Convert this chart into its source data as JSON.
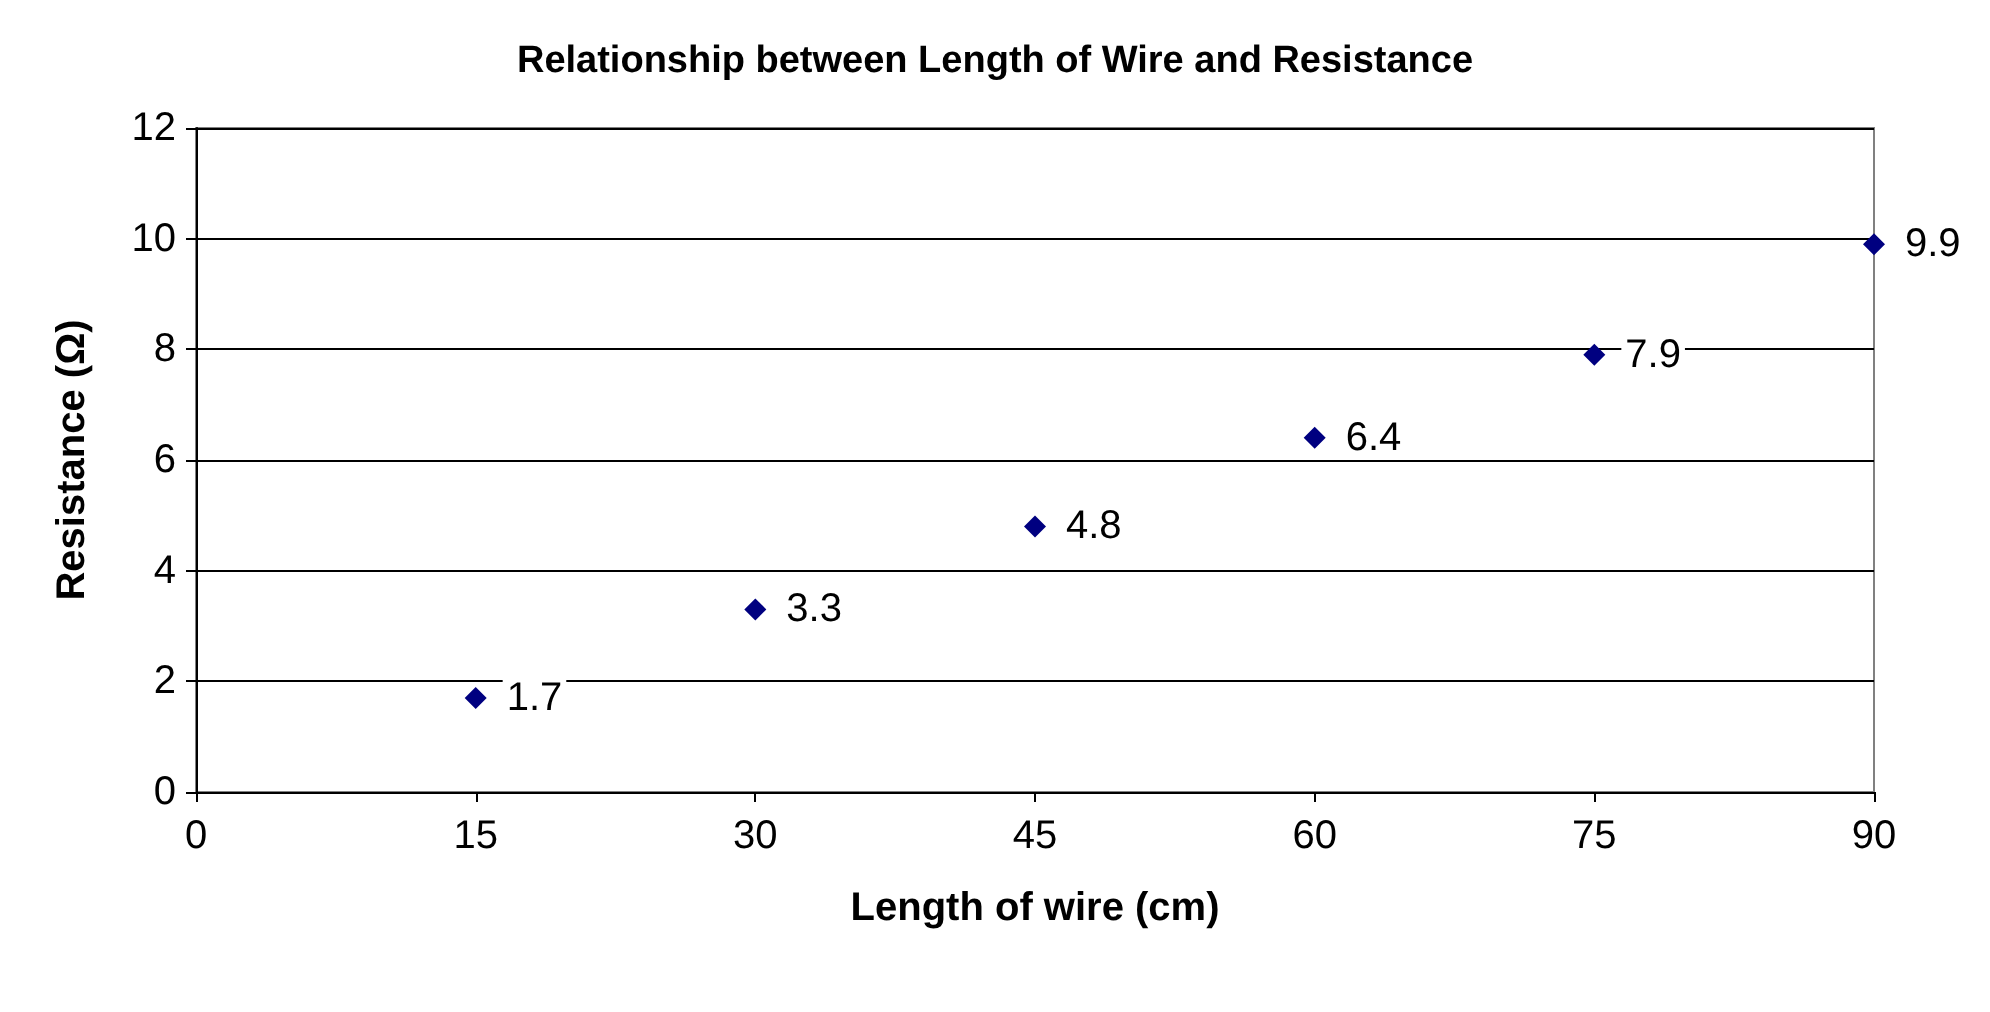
{
  "chart_data": {
    "type": "scatter",
    "title": "Relationship between Length of Wire and Resistance",
    "xlabel": "Length of wire (cm)",
    "ylabel": "Resistance (Ω)",
    "x": [
      15,
      30,
      45,
      60,
      75,
      90
    ],
    "series": [
      {
        "color": "#000080",
        "values": [
          1.7,
          3.3,
          4.8,
          6.4,
          7.9,
          9.9
        ]
      }
    ],
    "xlim": [
      0,
      90
    ],
    "xticks": [
      0,
      15,
      30,
      45,
      60,
      75,
      90
    ],
    "ylim": [
      0,
      12
    ],
    "yticks": [
      0,
      2,
      4,
      6,
      8,
      10,
      12
    ],
    "grid": "y",
    "marker": "diamond",
    "data_labels": true
  }
}
